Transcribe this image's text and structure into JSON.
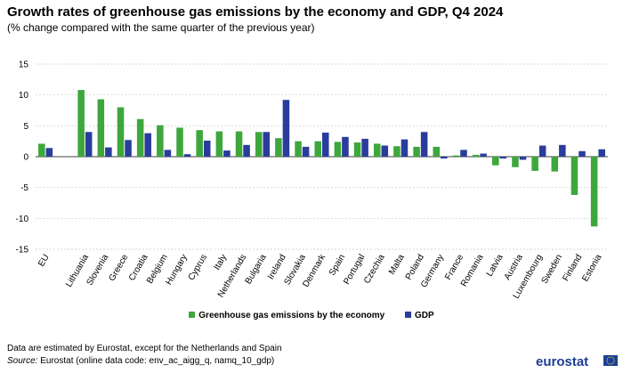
{
  "header": {
    "title": "Growth rates of greenhouse gas emissions by the economy and GDP, Q4 2024",
    "subtitle": "(% change compared with the same quarter of the previous year)"
  },
  "chart_data": {
    "type": "bar",
    "title": "Growth rates of greenhouse gas emissions by the economy and GDP, Q4 2024",
    "subtitle": "(% change compared with the same quarter of the previous year)",
    "categories": [
      "EU",
      "Lithuania",
      "Slovenia",
      "Greece",
      "Croatia",
      "Belgium",
      "Hungary",
      "Cyprus",
      "Italy",
      "Netherlands",
      "Bulgaria",
      "Ireland",
      "Slovakia",
      "Denmark",
      "Spain",
      "Portugal",
      "Czechia",
      "Malta",
      "Poland",
      "Germany",
      "France",
      "Romania",
      "Latvia",
      "Austria",
      "Luxembourg",
      "Sweden",
      "Finland",
      "Estonia"
    ],
    "series": [
      {
        "name": "Greenhouse gas emissions by the economy",
        "color": "#3ea73c",
        "values": [
          2.1,
          10.8,
          9.3,
          8.0,
          6.1,
          5.1,
          4.7,
          4.3,
          4.1,
          4.1,
          4.0,
          3.0,
          2.5,
          2.5,
          2.4,
          2.3,
          2.1,
          1.7,
          1.6,
          1.6,
          0.2,
          0.3,
          -1.4,
          -1.7,
          -2.3,
          -2.4,
          -6.2,
          -11.3
        ]
      },
      {
        "name": "GDP",
        "color": "#2a3d9c",
        "values": [
          1.4,
          4.0,
          1.5,
          2.7,
          3.8,
          1.1,
          0.4,
          2.6,
          1.0,
          1.9,
          4.0,
          9.2,
          1.6,
          3.9,
          3.2,
          2.9,
          1.8,
          2.8,
          4.0,
          -0.3,
          1.1,
          0.5,
          -0.3,
          -0.5,
          1.8,
          1.9,
          0.9,
          1.2
        ]
      }
    ],
    "yticks": [
      15,
      10,
      5,
      0,
      -5,
      -10,
      -15
    ],
    "ylim": [
      -15,
      15
    ],
    "grid": true,
    "legend_position": "bottom-center"
  },
  "legend": {
    "items": [
      {
        "label": "Greenhouse gas emissions by the economy",
        "color": "#3ea73c"
      },
      {
        "label": "GDP",
        "color": "#2a3d9c"
      }
    ]
  },
  "footer": {
    "note": "Data are estimated by Eurostat, except for the Netherlands and Spain",
    "source_prefix": "Source:",
    "source_text": " Eurostat (online data code: env_ac_aigg_q, namq_10_gdp)",
    "logo_text": "eurostat"
  }
}
